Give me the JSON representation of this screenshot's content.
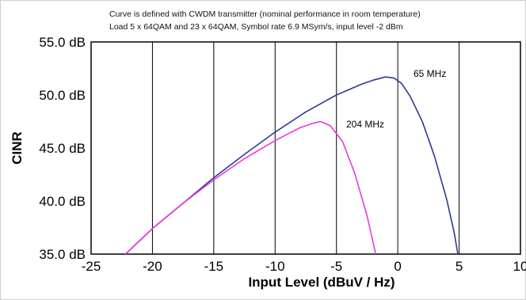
{
  "chart_data": {
    "type": "line",
    "title_lines": [
      "Curve is defined with CWDM transmitter (nominal performance in room temperature)",
      "Load 5 x 64QAM and 23 x 64QAM, Symbol rate 6.9 MSym/s, input level -2 dBm"
    ],
    "xlabel": "Input Level (dBuV / Hz)",
    "ylabel": "CINR",
    "xlim": [
      -25,
      10
    ],
    "ylim": [
      35,
      55
    ],
    "x_ticks": [
      -25,
      -20,
      -15,
      -10,
      -5,
      0,
      5,
      10
    ],
    "x_tick_labels": [
      "-25",
      "-20",
      "-15",
      "-10",
      "-5",
      "0",
      "5",
      "10"
    ],
    "y_ticks": [
      35,
      40,
      45,
      50,
      55
    ],
    "y_tick_labels": [
      "35.0 dB",
      "40.0 dB",
      "45.0 dB",
      "50.0 dB",
      "55.0 dB"
    ],
    "grid": "vertical",
    "series": [
      {
        "name": "65 MHz",
        "color": "#2f3a8c",
        "x": [
          -22.2,
          -20,
          -17.5,
          -15,
          -12.5,
          -10,
          -7.5,
          -5,
          -3,
          -2,
          -1,
          -0.3,
          0.3,
          1,
          2,
          3,
          4,
          4.6,
          4.9
        ],
        "y": [
          35.0,
          37.4,
          39.8,
          42.2,
          44.4,
          46.5,
          48.4,
          50.0,
          51.0,
          51.4,
          51.7,
          51.6,
          51.1,
          49.9,
          47.5,
          44.2,
          40.1,
          37.0,
          35.0
        ]
      },
      {
        "name": "204 MHz",
        "color": "#e839e0",
        "x": [
          -22.2,
          -20,
          -17.5,
          -15,
          -12.5,
          -10,
          -8,
          -7,
          -6.3,
          -5.5,
          -4.5,
          -3.5,
          -2.5,
          -1.8
        ],
        "y": [
          35.0,
          37.4,
          39.8,
          42.0,
          44.0,
          45.7,
          46.9,
          47.3,
          47.5,
          47.1,
          45.6,
          42.6,
          38.6,
          35.0
        ]
      }
    ]
  }
}
